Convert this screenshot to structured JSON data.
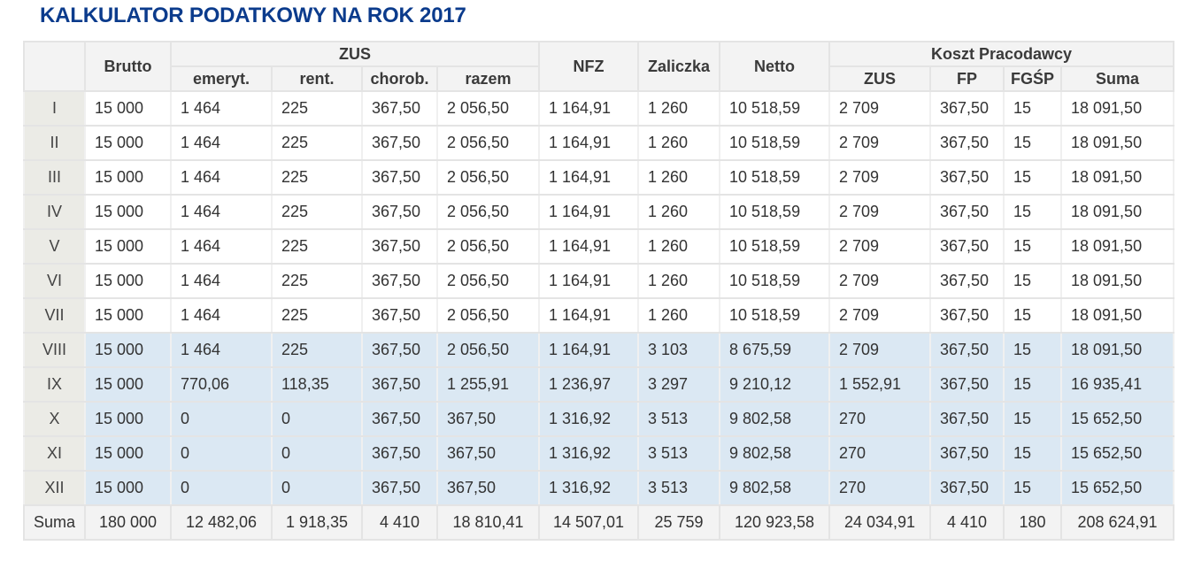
{
  "title": "KALKULATOR PODATKOWY NA ROK 2017",
  "headers": {
    "brutto": "Brutto",
    "zus": "ZUS",
    "zus_sub": [
      "emeryt.",
      "rent.",
      "chorob.",
      "razem"
    ],
    "nfz": "NFZ",
    "zaliczka": "Zaliczka",
    "netto": "Netto",
    "koszt": "Koszt Pracodawcy",
    "koszt_sub": [
      "ZUS",
      "FP",
      "FGŚP",
      "Suma"
    ]
  },
  "colors": {
    "title": "#0b3b8c",
    "highlight_row": "#dbe8f3",
    "header_bg": "#f3f3f3",
    "month_bg": "#ebebe6"
  },
  "rows": [
    {
      "month": "I",
      "highlight": false,
      "cells": [
        "15 000",
        "1 464",
        "225",
        "367,50",
        "2 056,50",
        "1 164,91",
        "1 260",
        "10 518,59",
        "2 709",
        "367,50",
        "15",
        "18 091,50"
      ]
    },
    {
      "month": "II",
      "highlight": false,
      "cells": [
        "15 000",
        "1 464",
        "225",
        "367,50",
        "2 056,50",
        "1 164,91",
        "1 260",
        "10 518,59",
        "2 709",
        "367,50",
        "15",
        "18 091,50"
      ]
    },
    {
      "month": "III",
      "highlight": false,
      "cells": [
        "15 000",
        "1 464",
        "225",
        "367,50",
        "2 056,50",
        "1 164,91",
        "1 260",
        "10 518,59",
        "2 709",
        "367,50",
        "15",
        "18 091,50"
      ]
    },
    {
      "month": "IV",
      "highlight": false,
      "cells": [
        "15 000",
        "1 464",
        "225",
        "367,50",
        "2 056,50",
        "1 164,91",
        "1 260",
        "10 518,59",
        "2 709",
        "367,50",
        "15",
        "18 091,50"
      ]
    },
    {
      "month": "V",
      "highlight": false,
      "cells": [
        "15 000",
        "1 464",
        "225",
        "367,50",
        "2 056,50",
        "1 164,91",
        "1 260",
        "10 518,59",
        "2 709",
        "367,50",
        "15",
        "18 091,50"
      ]
    },
    {
      "month": "VI",
      "highlight": false,
      "cells": [
        "15 000",
        "1 464",
        "225",
        "367,50",
        "2 056,50",
        "1 164,91",
        "1 260",
        "10 518,59",
        "2 709",
        "367,50",
        "15",
        "18 091,50"
      ]
    },
    {
      "month": "VII",
      "highlight": false,
      "cells": [
        "15 000",
        "1 464",
        "225",
        "367,50",
        "2 056,50",
        "1 164,91",
        "1 260",
        "10 518,59",
        "2 709",
        "367,50",
        "15",
        "18 091,50"
      ]
    },
    {
      "month": "VIII",
      "highlight": true,
      "cells": [
        "15 000",
        "1 464",
        "225",
        "367,50",
        "2 056,50",
        "1 164,91",
        "3 103",
        "8 675,59",
        "2 709",
        "367,50",
        "15",
        "18 091,50"
      ]
    },
    {
      "month": "IX",
      "highlight": true,
      "cells": [
        "15 000",
        "770,06",
        "118,35",
        "367,50",
        "1 255,91",
        "1 236,97",
        "3 297",
        "9 210,12",
        "1 552,91",
        "367,50",
        "15",
        "16 935,41"
      ]
    },
    {
      "month": "X",
      "highlight": true,
      "cells": [
        "15 000",
        "0",
        "0",
        "367,50",
        "367,50",
        "1 316,92",
        "3 513",
        "9 802,58",
        "270",
        "367,50",
        "15",
        "15 652,50"
      ]
    },
    {
      "month": "XI",
      "highlight": true,
      "cells": [
        "15 000",
        "0",
        "0",
        "367,50",
        "367,50",
        "1 316,92",
        "3 513",
        "9 802,58",
        "270",
        "367,50",
        "15",
        "15 652,50"
      ]
    },
    {
      "month": "XII",
      "highlight": true,
      "cells": [
        "15 000",
        "0",
        "0",
        "367,50",
        "367,50",
        "1 316,92",
        "3 513",
        "9 802,58",
        "270",
        "367,50",
        "15",
        "15 652,50"
      ]
    }
  ],
  "sum": {
    "label": "Suma",
    "cells": [
      "180 000",
      "12 482,06",
      "1 918,35",
      "4 410",
      "18 810,41",
      "14 507,01",
      "25 759",
      "120 923,58",
      "24 034,91",
      "4 410",
      "180",
      "208 624,91"
    ]
  }
}
